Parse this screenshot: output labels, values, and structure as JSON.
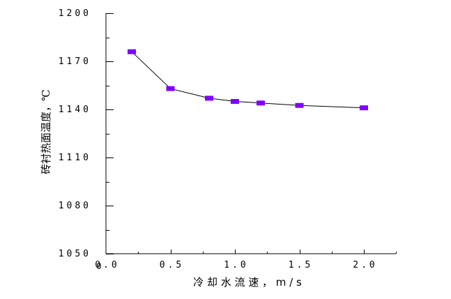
{
  "chart_data": {
    "type": "line",
    "title": "",
    "xlabel": "冷 却 水 流 速 ， m / s",
    "ylabel": "砖衬热面温度，℃",
    "x": [
      0.2,
      0.5,
      0.8,
      1.0,
      1.2,
      1.5,
      2.0
    ],
    "series": [
      {
        "name": "砖衬热面温度",
        "values": [
          1176,
          1153,
          1147,
          1145,
          1144,
          1142.5,
          1141
        ],
        "marker": "rectangle",
        "marker_color": "#7f00ff",
        "line_color": "#000000"
      }
    ],
    "xlim": [
      0.0,
      2.25
    ],
    "ylim": [
      1050,
      1200
    ],
    "x_ticks": [
      0.0,
      0.5,
      1.0,
      1.5,
      2.0
    ],
    "x_tick_labels": [
      "0.0",
      "0.5",
      "1.0",
      "1.5",
      "2.0"
    ],
    "x_minor_step": 0.25,
    "y_ticks": [
      1050,
      1080,
      1110,
      1140,
      1170,
      1200
    ],
    "y_tick_labels": [
      "1050",
      "1080",
      "1110",
      "1140",
      "1170",
      "1200"
    ],
    "y_minor_step": 15,
    "grid": false,
    "legend": null
  },
  "axes": {
    "x_tick_labels": [
      "0.0",
      "0.5",
      "1.0",
      "1.5",
      "2.0"
    ],
    "y_tick_labels": [
      "1050",
      "1080",
      "1110",
      "1140",
      "1170",
      "1200"
    ],
    "x_title": "冷 却 水 流 速 ， m / s",
    "y_title": "砖衬热面温度，℃",
    "stray_zero": "0"
  },
  "colors": {
    "marker": "#7f00ff",
    "line": "#000000",
    "axis": "#000000",
    "background": "#ffffff"
  }
}
